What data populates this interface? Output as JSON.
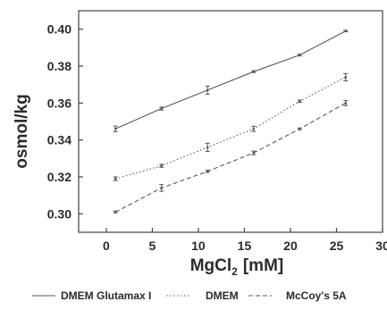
{
  "chart_data": {
    "type": "line",
    "xlabel": "MgCl",
    "xlabel_sub": "2",
    "xlabel_unit": "[mM]",
    "ylabel": "osmol/kg",
    "xlim": [
      -3,
      30
    ],
    "ylim": [
      0.29,
      0.41
    ],
    "xticks": [
      0,
      5,
      10,
      15,
      20,
      25,
      30
    ],
    "yticks": [
      "0.30",
      "0.32",
      "0.34",
      "0.36",
      "0.38",
      "0.40"
    ],
    "legend_position": "bottom",
    "grid": false,
    "series": [
      {
        "name": "DMEM Glutamax I",
        "style": "solid",
        "color": "#5a5a5a",
        "x": [
          1,
          6,
          11,
          16,
          21,
          26
        ],
        "y": [
          0.346,
          0.357,
          0.367,
          0.377,
          0.386,
          0.399
        ],
        "err": [
          0.0015,
          0.0008,
          0.0022,
          0.0005,
          0.0005,
          0.0004
        ]
      },
      {
        "name": "DMEM",
        "style": "dotted",
        "color": "#5a5a5a",
        "x": [
          1,
          6,
          11,
          16,
          21,
          26
        ],
        "y": [
          0.319,
          0.326,
          0.336,
          0.346,
          0.361,
          0.374
        ],
        "err": [
          0.001,
          0.0008,
          0.0022,
          0.0014,
          0.0006,
          0.002
        ]
      },
      {
        "name": "McCoy's 5A",
        "style": "dashed",
        "color": "#5a5a5a",
        "x": [
          1,
          6,
          11,
          16,
          21,
          26
        ],
        "y": [
          0.301,
          0.314,
          0.323,
          0.333,
          0.346,
          0.36
        ],
        "err": [
          0.0005,
          0.0018,
          0.0006,
          0.001,
          0.0005,
          0.0014
        ]
      }
    ]
  }
}
